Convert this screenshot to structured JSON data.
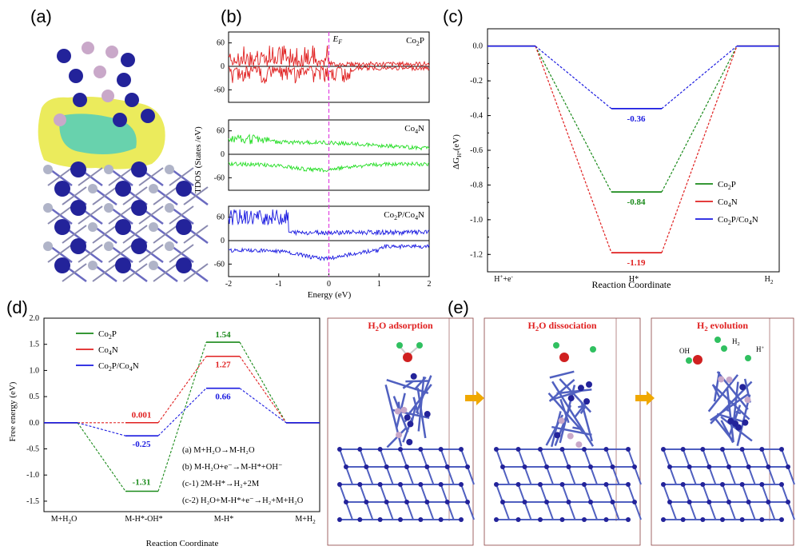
{
  "panel_labels": {
    "a": "(a)",
    "b": "(b)",
    "c": "(c)",
    "d": "(d)",
    "e": "(e)"
  },
  "colors": {
    "co2p": "#1a8a1a",
    "co4n": "#e02020",
    "composite": "#1a1ae0",
    "fermi": "#e040e0",
    "atom_blue": "#23239a",
    "atom_grey": "#b0b4c8",
    "atom_pink": "#c9a8c9",
    "charge_yellow": "#e8e840",
    "charge_cyan": "#30c8d0",
    "arrow": "#f0a800",
    "bond": "#5060c0",
    "frame": "#8a4040"
  },
  "panel_a": {
    "image": "crystal-structure-with-charge-density-difference",
    "atoms": [
      "blue-co",
      "grey-n",
      "pink-p"
    ]
  },
  "panel_b": {
    "fermi_label_main": "E",
    "fermi_label_sub": "F",
    "ylabel": "TDOS (States /eV)",
    "xlabel": "Energy (eV)",
    "x_ticks": [
      "-2",
      "-1",
      "0",
      "1",
      "2"
    ],
    "y_ticks": [
      "60",
      "0",
      "-60"
    ],
    "subpanels": [
      {
        "main": "Co",
        "sub1": "2",
        "rest": "P"
      },
      {
        "main": "Co",
        "sub1": "4",
        "rest": "N"
      },
      {
        "main": "Co",
        "sub1": "2",
        "rest": "P/Co",
        "sub2": "4",
        "rest2": "N"
      }
    ]
  },
  "panel_c": {
    "ylabel_main": "ΔG",
    "ylabel_sub": "H*",
    "ylabel_unit": "(eV)",
    "xlabel": "Reaction Coordinate",
    "x_ticks": {
      "t0_main": "H",
      "t0_sup1": "+",
      "t0_rest": "+e",
      "t0_sup2": "-",
      "t1": "H*",
      "t2_main": "H",
      "t2_sub": "2"
    },
    "y_ticks": [
      "0.0",
      "-0.2",
      "-0.4",
      "-0.6",
      "-0.8",
      "-1.0",
      "-1.2"
    ],
    "ylim": [
      -1.3,
      0.1
    ],
    "legend": [
      {
        "main": "Co",
        "sub": "2",
        "rest": "P"
      },
      {
        "main": "Co",
        "sub": "4",
        "rest": "N"
      },
      {
        "main": "Co",
        "sub": "2",
        "rest": "P/Co",
        "sub2": "4",
        "rest2": "N"
      }
    ],
    "value_labels": [
      "-0.36",
      "-0.84",
      "-1.19"
    ]
  },
  "panel_d": {
    "ylabel": "Free energy (eV)",
    "xlabel": "Reaction Coordinate",
    "x_ticks": {
      "t0_main": "M+H",
      "t0_sub": "2",
      "t0_rest": "O",
      "t1": "M-H*-OH*",
      "t2": "M-H*",
      "t3_main": "M+H",
      "t3_sub": "2"
    },
    "y_ticks": [
      "2.0",
      "1.5",
      "1.0",
      "0.5",
      "0.0",
      "-0.5",
      "-1.0",
      "-1.5"
    ],
    "ylim": [
      -1.7,
      2.0
    ],
    "legend": [
      {
        "main": "Co",
        "sub": "2",
        "rest": "P"
      },
      {
        "main": "Co",
        "sub": "4",
        "rest": "N"
      },
      {
        "main": "Co",
        "sub": "2",
        "rest": "P/Co",
        "sub2": "4",
        "rest2": "N"
      }
    ],
    "value_labels": [
      "0.001",
      "-0.25",
      "-1.31",
      "1.54",
      "1.27",
      "0.66"
    ],
    "reactions": [
      "(a) M+H₂O→M-H₂O",
      "(b) M-H₂O+e⁻→M-H*+OH⁻",
      "(c-1) 2M-H*→H₂+2M",
      "(c-2) H₂O+M-H*+e⁻→H₂+M+H₂O"
    ]
  },
  "panel_e": {
    "steps": [
      {
        "main": "H",
        "sub": "2",
        "rest": "O adsorption"
      },
      {
        "main": "H",
        "sub": "2",
        "rest": "O dissociation"
      },
      {
        "main": "H",
        "sub": "2",
        "rest": " evolution"
      }
    ],
    "molecule_labels": {
      "oh": "OH",
      "h2_main": "H",
      "h2_sub": "2",
      "hplus": "H",
      "hplus_sup": "+"
    }
  },
  "chart_data": [
    {
      "type": "line",
      "panel": "b",
      "title": "",
      "xlabel": "Energy (eV)",
      "ylabel": "TDOS (States /eV)",
      "xlim": [
        -2,
        2
      ],
      "ylim": [
        -90,
        90
      ],
      "series": [
        {
          "name": "Co2P"
        },
        {
          "name": "Co4N"
        },
        {
          "name": "Co2P/Co4N"
        }
      ],
      "annotations": [
        "E_F at 0"
      ]
    },
    {
      "type": "line",
      "panel": "c",
      "title": "",
      "xlabel": "Reaction Coordinate",
      "ylabel": "ΔG_H* (eV)",
      "categories": [
        "H++e-",
        "H*",
        "H2"
      ],
      "ylim": [
        -1.3,
        0.1
      ],
      "series": [
        {
          "name": "Co2P",
          "values": [
            0,
            -0.84,
            0
          ]
        },
        {
          "name": "Co4N",
          "values": [
            0,
            -1.19,
            0
          ]
        },
        {
          "name": "Co2P/Co4N",
          "values": [
            0,
            -0.36,
            0
          ]
        }
      ]
    },
    {
      "type": "line",
      "panel": "d",
      "title": "",
      "xlabel": "Reaction Coordinate",
      "ylabel": "Free energy (eV)",
      "categories": [
        "M+H2O",
        "M-H*-OH*",
        "M-H*",
        "M+H2"
      ],
      "ylim": [
        -1.7,
        2.0
      ],
      "series": [
        {
          "name": "Co2P",
          "values": [
            0,
            -1.31,
            1.54,
            0
          ]
        },
        {
          "name": "Co4N",
          "values": [
            0,
            0.001,
            1.27,
            0
          ]
        },
        {
          "name": "Co2P/Co4N",
          "values": [
            0,
            -0.25,
            0.66,
            0
          ]
        }
      ]
    }
  ]
}
